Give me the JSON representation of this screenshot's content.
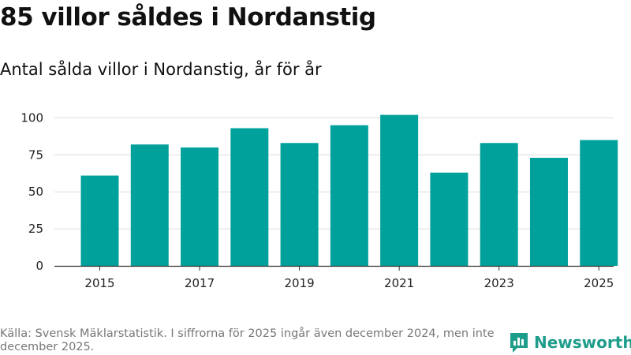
{
  "header": {
    "title": "85 villor såldes i Nordanstig",
    "subtitle": "Antal sålda villor i Nordanstig, år för år"
  },
  "chart_data": {
    "type": "bar",
    "title": "85 villor såldes i Nordanstig",
    "subtitle": "Antal sålda villor i Nordanstig, år för år",
    "categories": [
      "2015",
      "2016",
      "2017",
      "2018",
      "2019",
      "2020",
      "2021",
      "2022",
      "2023",
      "2024",
      "2025"
    ],
    "values": [
      61,
      82,
      80,
      93,
      83,
      95,
      102,
      63,
      83,
      73,
      85
    ],
    "x_tick_labels": [
      "2015",
      "2017",
      "2019",
      "2021",
      "2023",
      "2025"
    ],
    "y_ticks": [
      0,
      25,
      50,
      75,
      100
    ],
    "ylim": [
      0,
      105
    ],
    "xlabel": "",
    "ylabel": "",
    "grid": true,
    "bar_color": "#00a19a"
  },
  "footer": {
    "source": "Källa: Svensk Mäklarstatistik. I siffrorna för 2025 ingår även december 2024, men inte december 2025.",
    "brand": "Newsworthy",
    "brand_icon": "newsworthy-logo-icon",
    "brand_color": "#1f9d8b"
  }
}
